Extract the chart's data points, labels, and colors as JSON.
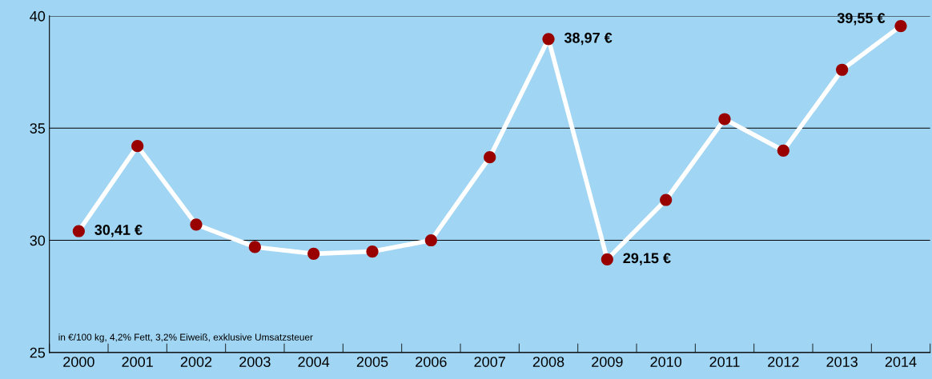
{
  "chart_data": {
    "type": "line",
    "categories": [
      "2000",
      "2001",
      "2002",
      "2003",
      "2004",
      "2005",
      "2006",
      "2007",
      "2008",
      "2009",
      "2010",
      "2011",
      "2012",
      "2013",
      "2014"
    ],
    "series": [
      {
        "color": "#ffffff",
        "values": [
          30.41,
          34.2,
          30.7,
          29.7,
          29.4,
          29.5,
          30.0,
          33.7,
          38.97,
          29.15,
          31.8,
          35.4,
          34.0,
          37.6,
          39.55
        ],
        "colors": [
          "#990000",
          "#990000",
          "#990000",
          "#990000",
          "#990000",
          "#990000",
          "#990000",
          "#990000",
          "#990000",
          "#990000",
          "#990000",
          "#990000",
          "#990000",
          "#990000",
          "#990000"
        ],
        "value_labels": [
          "30,41 €",
          null,
          null,
          null,
          null,
          null,
          null,
          null,
          "38,97 €",
          "29,15 €",
          null,
          null,
          null,
          null,
          "39,55 €"
        ]
      }
    ],
    "marker": "circle",
    "line_style": "solid",
    "ylim": [
      25,
      40
    ],
    "yticks": [
      25,
      30,
      35,
      40
    ],
    "grid": "y",
    "legend": false,
    "annotations": [
      "in €/100 kg, 4,2% Fett, 3,2% Eiweiß, exklusive Umsatzsteuer"
    ]
  }
}
